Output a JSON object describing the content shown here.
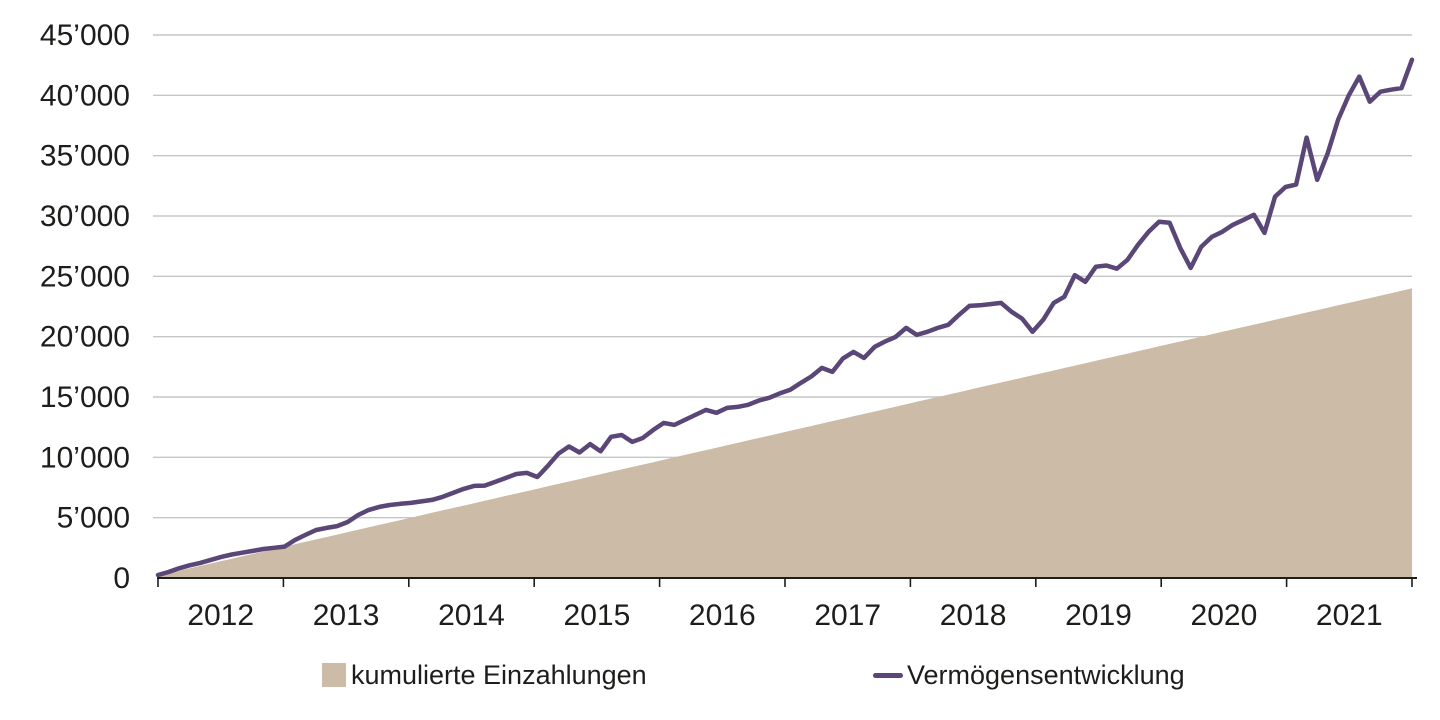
{
  "legend": {
    "deposits_label": "kumulierte Einzahlungen",
    "portfolio_label": "Vermögensentwicklung"
  },
  "colors": {
    "area_fill": "#ccbba7",
    "line_stroke": "#5a4677",
    "grid": "#c6c6c6",
    "axis": "#1d1d1b",
    "text": "#1d1d1b",
    "background": "#ffffff"
  },
  "chart_data": {
    "type": "line",
    "subtype": "area-plus-line-combo",
    "x_unit": "month",
    "x_range": [
      "2012-01",
      "2021-12"
    ],
    "x_tick_labels": [
      "2012",
      "2013",
      "2014",
      "2015",
      "2016",
      "2017",
      "2018",
      "2019",
      "2020",
      "2021"
    ],
    "y_tick_values": [
      0,
      5000,
      10000,
      15000,
      20000,
      25000,
      30000,
      35000,
      40000,
      45000
    ],
    "y_tick_labels": [
      "0",
      "5’000",
      "10’000",
      "15’000",
      "20’000",
      "25’000",
      "30’000",
      "35’000",
      "40’000",
      "45’000"
    ],
    "ylim": [
      0,
      45000
    ],
    "grid": "horizontal",
    "legend_position": "bottom",
    "series": [
      {
        "name": "kumulierte Einzahlungen",
        "type": "area",
        "color": "#ccbba7",
        "monthly_contribution": 200,
        "values": [
          200,
          400,
          600,
          800,
          1000,
          1200,
          1400,
          1600,
          1800,
          2000,
          2200,
          2400,
          2600,
          2800,
          3000,
          3200,
          3400,
          3600,
          3800,
          4000,
          4200,
          4400,
          4600,
          4800,
          5000,
          5200,
          5400,
          5600,
          5800,
          6000,
          6200,
          6400,
          6600,
          6800,
          7000,
          7200,
          7400,
          7600,
          7800,
          8000,
          8200,
          8400,
          8600,
          8800,
          9000,
          9200,
          9400,
          9600,
          9800,
          10000,
          10200,
          10400,
          10600,
          10800,
          11000,
          11200,
          11400,
          11600,
          11800,
          12000,
          12200,
          12400,
          12600,
          12800,
          13000,
          13200,
          13400,
          13600,
          13800,
          14000,
          14200,
          14400,
          14600,
          14800,
          15000,
          15200,
          15400,
          15600,
          15800,
          16000,
          16200,
          16400,
          16600,
          16800,
          17000,
          17200,
          17400,
          17600,
          17800,
          18000,
          18200,
          18400,
          18600,
          18800,
          19000,
          19200,
          19400,
          19600,
          19800,
          20000,
          20200,
          20400,
          20600,
          20800,
          21000,
          21200,
          21400,
          21600,
          21800,
          22000,
          22200,
          22400,
          22600,
          22800,
          23000,
          23200,
          23400,
          23600,
          23800,
          24000
        ]
      },
      {
        "name": "Vermögensentwicklung",
        "type": "line",
        "color": "#5a4677",
        "stroke_width": 4.5,
        "values": [
          250,
          500,
          800,
          1050,
          1250,
          1500,
          1750,
          1950,
          2100,
          2250,
          2400,
          2500,
          2600,
          3150,
          3570,
          3980,
          4150,
          4300,
          4640,
          5220,
          5640,
          5890,
          6050,
          6150,
          6220,
          6350,
          6470,
          6720,
          7050,
          7380,
          7630,
          7660,
          7960,
          8290,
          8620,
          8710,
          8370,
          9300,
          10300,
          10900,
          10400,
          11100,
          10500,
          11700,
          11850,
          11280,
          11600,
          12270,
          12850,
          12690,
          13100,
          13520,
          13930,
          13690,
          14100,
          14180,
          14350,
          14700,
          14930,
          15300,
          15600,
          16170,
          16700,
          17410,
          17080,
          18200,
          18740,
          18240,
          19150,
          19600,
          19980,
          20730,
          20150,
          20400,
          20730,
          20980,
          21800,
          22550,
          22600,
          22700,
          22800,
          22060,
          21500,
          20400,
          21400,
          22800,
          23300,
          25100,
          24550,
          25800,
          25900,
          25630,
          26370,
          27610,
          28690,
          29520,
          29440,
          27360,
          25700,
          27440,
          28270,
          28690,
          29270,
          29680,
          30100,
          28600,
          31600,
          32400,
          32600,
          36500,
          33000,
          35200,
          38000,
          40000,
          41550,
          39470,
          40300,
          40470,
          40600,
          42950
        ]
      }
    ]
  }
}
